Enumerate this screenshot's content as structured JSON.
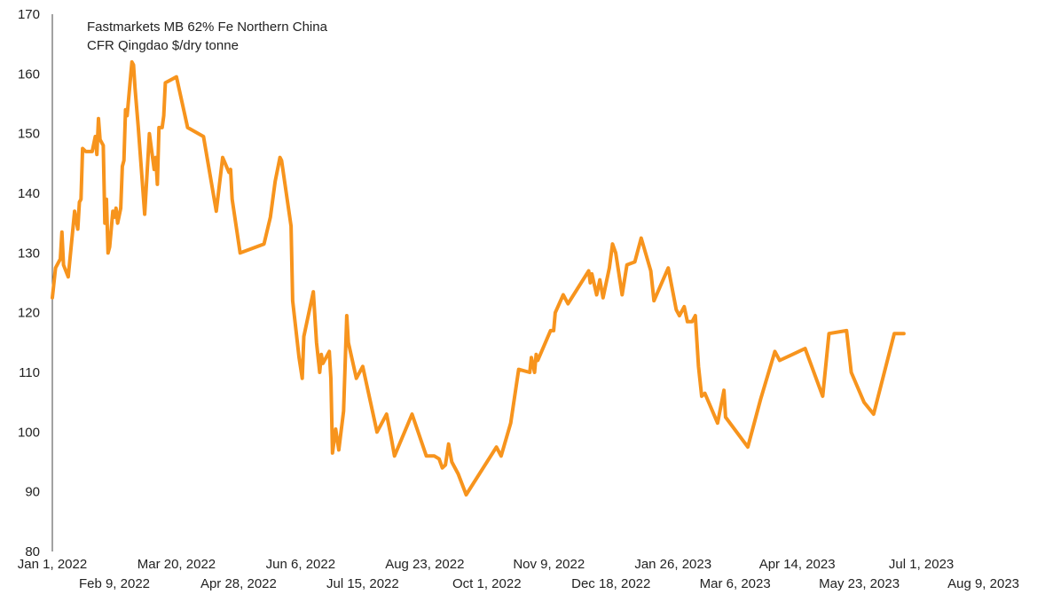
{
  "chart_data": {
    "type": "line",
    "title": "",
    "xlabel": "",
    "ylabel": "",
    "ylim": [
      80,
      170
    ],
    "yticks": [
      80,
      90,
      100,
      110,
      120,
      130,
      140,
      150,
      160,
      170
    ],
    "xlim": [
      "2022-01-01",
      "2023-09-05"
    ],
    "xticks": [
      {
        "date": "2022-01-01",
        "label": "Jan 1, 2022",
        "row": 1
      },
      {
        "date": "2022-02-09",
        "label": "Feb 9, 2022",
        "row": 2
      },
      {
        "date": "2022-03-20",
        "label": "Mar 20, 2022",
        "row": 1
      },
      {
        "date": "2022-04-28",
        "label": "Apr 28, 2022",
        "row": 2
      },
      {
        "date": "2022-06-06",
        "label": "Jun 6, 2022",
        "row": 1
      },
      {
        "date": "2022-07-15",
        "label": "Jul 15, 2022",
        "row": 2
      },
      {
        "date": "2022-08-23",
        "label": "Aug 23, 2022",
        "row": 1
      },
      {
        "date": "2022-10-01",
        "label": "Oct 1, 2022",
        "row": 2
      },
      {
        "date": "2022-11-09",
        "label": "Nov 9, 2022",
        "row": 1
      },
      {
        "date": "2022-12-18",
        "label": "Dec 18, 2022",
        "row": 2
      },
      {
        "date": "2023-01-26",
        "label": "Jan 26, 2023",
        "row": 1
      },
      {
        "date": "2023-03-06",
        "label": "Mar 6, 2023",
        "row": 2
      },
      {
        "date": "2023-04-14",
        "label": "Apr 14, 2023",
        "row": 1
      },
      {
        "date": "2023-05-23",
        "label": "May 23, 2023",
        "row": 2
      },
      {
        "date": "2023-07-01",
        "label": "Jul 1, 2023",
        "row": 1
      },
      {
        "date": "2023-08-09",
        "label": "Aug 9, 2023",
        "row": 2
      }
    ],
    "legend_position": "top-left",
    "grid": false,
    "series": [
      {
        "name": "Fastmarkets MB 62% Fe Northern China\nCFR Qingdao $/dry tonne",
        "color": "#F7941D",
        "points": [
          [
            "2022-01-01",
            122.5
          ],
          [
            "2022-01-03",
            127.5
          ],
          [
            "2022-01-06",
            129.0
          ],
          [
            "2022-01-07",
            133.5
          ],
          [
            "2022-01-08",
            128.0
          ],
          [
            "2022-01-11",
            126.0
          ],
          [
            "2022-01-15",
            137.0
          ],
          [
            "2022-01-17",
            134.0
          ],
          [
            "2022-01-18",
            138.5
          ],
          [
            "2022-01-19",
            139.0
          ],
          [
            "2022-01-20",
            147.5
          ],
          [
            "2022-01-22",
            147.0
          ],
          [
            "2022-01-26",
            147.0
          ],
          [
            "2022-01-28",
            149.5
          ],
          [
            "2022-01-29",
            146.5
          ],
          [
            "2022-01-30",
            152.5
          ],
          [
            "2022-01-31",
            149.0
          ],
          [
            "2022-02-02",
            148.0
          ],
          [
            "2022-02-03",
            135.0
          ],
          [
            "2022-02-04",
            139.0
          ],
          [
            "2022-02-05",
            130.0
          ],
          [
            "2022-02-06",
            131.0
          ],
          [
            "2022-02-08",
            137.0
          ],
          [
            "2022-02-09",
            136.0
          ],
          [
            "2022-02-10",
            137.5
          ],
          [
            "2022-02-11",
            135.0
          ],
          [
            "2022-02-13",
            137.5
          ],
          [
            "2022-02-14",
            144.5
          ],
          [
            "2022-02-15",
            145.5
          ],
          [
            "2022-02-16",
            154.0
          ],
          [
            "2022-02-17",
            153.0
          ],
          [
            "2022-02-20",
            162.0
          ],
          [
            "2022-02-21",
            161.5
          ],
          [
            "2022-02-22",
            157.5
          ],
          [
            "2022-02-24",
            151.0
          ],
          [
            "2022-02-28",
            136.5
          ],
          [
            "2022-03-03",
            150.0
          ],
          [
            "2022-03-05",
            146.0
          ],
          [
            "2022-03-06",
            144.0
          ],
          [
            "2022-03-07",
            146.0
          ],
          [
            "2022-03-08",
            141.5
          ],
          [
            "2022-03-09",
            151.0
          ],
          [
            "2022-03-11",
            151.0
          ],
          [
            "2022-03-12",
            153.0
          ],
          [
            "2022-03-13",
            158.5
          ],
          [
            "2022-03-20",
            159.5
          ],
          [
            "2022-03-27",
            151.0
          ],
          [
            "2022-04-06",
            149.5
          ],
          [
            "2022-04-14",
            137.0
          ],
          [
            "2022-04-18",
            146.0
          ],
          [
            "2022-04-22",
            143.5
          ],
          [
            "2022-04-23",
            144.0
          ],
          [
            "2022-04-24",
            139.0
          ],
          [
            "2022-04-29",
            130.0
          ],
          [
            "2022-05-14",
            131.5
          ],
          [
            "2022-05-18",
            136.0
          ],
          [
            "2022-05-21",
            142.0
          ],
          [
            "2022-05-24",
            146.0
          ],
          [
            "2022-05-25",
            145.5
          ],
          [
            "2022-05-31",
            134.5
          ],
          [
            "2022-06-01",
            122.0
          ],
          [
            "2022-06-05",
            112.5
          ],
          [
            "2022-06-07",
            109.0
          ],
          [
            "2022-06-08",
            116.0
          ],
          [
            "2022-06-14",
            123.5
          ],
          [
            "2022-06-16",
            115.0
          ],
          [
            "2022-06-18",
            110.0
          ],
          [
            "2022-06-19",
            113.0
          ],
          [
            "2022-06-20",
            111.5
          ],
          [
            "2022-06-24",
            113.5
          ],
          [
            "2022-06-25",
            109.0
          ],
          [
            "2022-06-26",
            96.5
          ],
          [
            "2022-06-28",
            100.5
          ],
          [
            "2022-06-30",
            97.0
          ],
          [
            "2022-07-03",
            103.5
          ],
          [
            "2022-07-05",
            119.5
          ],
          [
            "2022-07-06",
            115.0
          ],
          [
            "2022-07-11",
            109.0
          ],
          [
            "2022-07-15",
            111.0
          ],
          [
            "2022-07-24",
            100.0
          ],
          [
            "2022-07-30",
            103.0
          ],
          [
            "2022-08-02",
            99.0
          ],
          [
            "2022-08-04",
            96.0
          ],
          [
            "2022-08-15",
            103.0
          ],
          [
            "2022-08-24",
            96.0
          ],
          [
            "2022-08-29",
            96.0
          ],
          [
            "2022-09-01",
            95.5
          ],
          [
            "2022-09-03",
            94.0
          ],
          [
            "2022-09-05",
            94.5
          ],
          [
            "2022-09-07",
            98.0
          ],
          [
            "2022-09-09",
            95.0
          ],
          [
            "2022-09-13",
            93.0
          ],
          [
            "2022-09-18",
            89.5
          ],
          [
            "2022-10-07",
            97.5
          ],
          [
            "2022-10-10",
            96.0
          ],
          [
            "2022-10-16",
            101.5
          ],
          [
            "2022-10-21",
            110.5
          ],
          [
            "2022-10-28",
            110.0
          ],
          [
            "2022-10-29",
            112.5
          ],
          [
            "2022-10-31",
            110.0
          ],
          [
            "2022-11-01",
            113.0
          ],
          [
            "2022-11-02",
            112.0
          ],
          [
            "2022-11-10",
            117.0
          ],
          [
            "2022-11-12",
            117.0
          ],
          [
            "2022-11-13",
            120.0
          ],
          [
            "2022-11-18",
            123.0
          ],
          [
            "2022-11-21",
            121.5
          ],
          [
            "2022-12-04",
            127.0
          ],
          [
            "2022-12-05",
            125.0
          ],
          [
            "2022-12-06",
            126.5
          ],
          [
            "2022-12-09",
            123.0
          ],
          [
            "2022-12-11",
            125.5
          ],
          [
            "2022-12-13",
            122.5
          ],
          [
            "2022-12-17",
            127.5
          ],
          [
            "2022-12-19",
            131.5
          ],
          [
            "2022-12-21",
            130.0
          ],
          [
            "2022-12-25",
            123.0
          ],
          [
            "2022-12-28",
            128.0
          ],
          [
            "2023-01-02",
            128.5
          ],
          [
            "2023-01-06",
            132.5
          ],
          [
            "2023-01-12",
            127.0
          ],
          [
            "2023-01-14",
            122.0
          ],
          [
            "2023-01-23",
            127.5
          ],
          [
            "2023-01-28",
            120.5
          ],
          [
            "2023-01-30",
            119.5
          ],
          [
            "2023-02-02",
            121.0
          ],
          [
            "2023-02-04",
            118.5
          ],
          [
            "2023-02-07",
            118.5
          ],
          [
            "2023-02-09",
            119.5
          ],
          [
            "2023-02-11",
            111.0
          ],
          [
            "2023-02-13",
            106.0
          ],
          [
            "2023-02-15",
            106.5
          ],
          [
            "2023-02-23",
            101.5
          ],
          [
            "2023-02-27",
            107.0
          ],
          [
            "2023-02-28",
            102.5
          ],
          [
            "2023-03-14",
            97.5
          ],
          [
            "2023-03-22",
            105.5
          ],
          [
            "2023-03-31",
            113.5
          ],
          [
            "2023-04-03",
            112.0
          ],
          [
            "2023-04-19",
            114.0
          ],
          [
            "2023-04-30",
            106.0
          ],
          [
            "2023-05-04",
            116.5
          ],
          [
            "2023-05-15",
            117.0
          ],
          [
            "2023-05-18",
            110.0
          ],
          [
            "2023-05-26",
            105.0
          ],
          [
            "2023-06-01",
            103.0
          ],
          [
            "2023-06-14",
            116.5
          ],
          [
            "2023-06-20",
            116.5
          ]
        ]
      }
    ]
  }
}
